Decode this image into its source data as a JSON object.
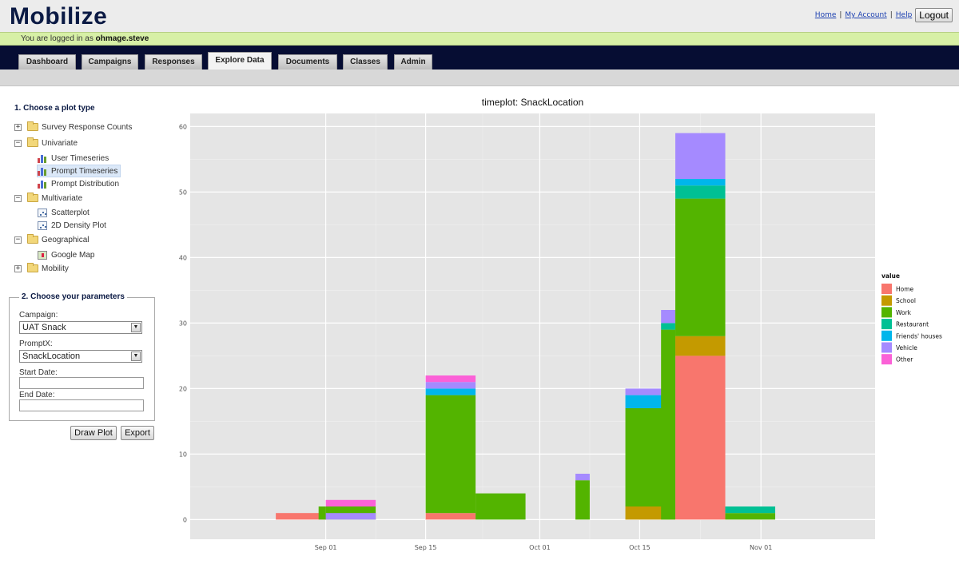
{
  "app": {
    "title": "Mobilize",
    "top_links": [
      "Home",
      "My Account",
      "Help"
    ],
    "logout_label": "Logout",
    "status_prefix": "You are logged in as",
    "username": "ohmage.steve"
  },
  "nav": {
    "tabs": [
      {
        "label": "Dashboard",
        "active": false
      },
      {
        "label": "Campaigns",
        "active": false
      },
      {
        "label": "Responses",
        "active": false
      },
      {
        "label": "Explore Data",
        "active": true
      },
      {
        "label": "Documents",
        "active": false
      },
      {
        "label": "Classes",
        "active": false
      },
      {
        "label": "Admin",
        "active": false
      }
    ]
  },
  "sidebar": {
    "plot_type_title": "1. Choose a plot type",
    "tree": [
      {
        "label": "Survey Response Counts",
        "expander": "+",
        "icon": "folder-icon"
      },
      {
        "label": "Univariate",
        "expander": "−",
        "icon": "folder-icon"
      },
      {
        "label": "User Timeseries",
        "icon": "barchart-icon",
        "child": true
      },
      {
        "label": "Prompt Timeseries",
        "icon": "barchart-icon",
        "child": true,
        "selected": true
      },
      {
        "label": "Prompt Distribution",
        "icon": "barchart-icon",
        "child": true
      },
      {
        "label": "Multivariate",
        "expander": "−",
        "icon": "folder-icon"
      },
      {
        "label": "Scatterplot",
        "icon": "scatterplot-icon",
        "child": true
      },
      {
        "label": "2D Density Plot",
        "icon": "scatterplot-icon",
        "child": true
      },
      {
        "label": "Geographical",
        "expander": "−",
        "icon": "folder-icon"
      },
      {
        "label": "Google Map",
        "icon": "map-icon",
        "child": true
      },
      {
        "label": "Mobility",
        "expander": "+",
        "icon": "folder-icon"
      }
    ],
    "params_title": "2. Choose your parameters",
    "campaign_label": "Campaign:",
    "campaign_value": "UAT Snack",
    "promptx_label": "PromptX:",
    "promptx_value": "SnackLocation",
    "start_date_label": "Start Date:",
    "start_date_value": "",
    "end_date_label": "End Date:",
    "end_date_value": "",
    "draw_plot_label": "Draw Plot",
    "export_label": "Export"
  },
  "chart_data": {
    "type": "bar",
    "stacked": true,
    "title": "timeplot: SnackLocation",
    "xlabel": "",
    "ylabel": "",
    "ylim": [
      -3,
      62
    ],
    "yticks": [
      0,
      10,
      20,
      30,
      40,
      50,
      60
    ],
    "x_is_date": true,
    "xlim": [
      "2011-08-13",
      "2011-11-17"
    ],
    "xticks": [
      {
        "date": "2011-09-01",
        "label": "Sep 01"
      },
      {
        "date": "2011-09-15",
        "label": "Sep 15"
      },
      {
        "date": "2011-10-01",
        "label": "Oct 01"
      },
      {
        "date": "2011-10-15",
        "label": "Oct 15"
      },
      {
        "date": "2011-11-01",
        "label": "Nov 01"
      }
    ],
    "grid": true,
    "background": "#e5e5e5",
    "legend": {
      "title": "value",
      "position": "right",
      "entries": [
        {
          "name": "Home",
          "color": "#f8766d"
        },
        {
          "name": "School",
          "color": "#c49a00"
        },
        {
          "name": "Work",
          "color": "#53b400"
        },
        {
          "name": "Restaurant",
          "color": "#00c094"
        },
        {
          "name": "Friends' houses",
          "color": "#00b6eb"
        },
        {
          "name": "Vehicle",
          "color": "#a58aff"
        },
        {
          "name": "Other",
          "color": "#fb61d7"
        }
      ]
    },
    "bars": [
      {
        "start": "2011-08-25",
        "end": "2011-09-08",
        "values": {
          "Home": 1
        }
      },
      {
        "start": "2011-08-31",
        "end": "2011-09-01",
        "values": {
          "Work": 2
        }
      },
      {
        "start": "2011-09-01",
        "end": "2011-09-08",
        "values": {
          "Work": 2,
          "Other": 1
        }
      },
      {
        "start": "2011-09-01",
        "end": "2011-09-08",
        "values": {
          "Vehicle": 1
        }
      },
      {
        "start": "2011-09-15",
        "end": "2011-09-22",
        "values": {
          "Home": 1,
          "Work": 18,
          "Friends' houses": 1,
          "Vehicle": 1,
          "Other": 1
        }
      },
      {
        "start": "2011-09-22",
        "end": "2011-09-29",
        "values": {
          "Work": 4
        }
      },
      {
        "start": "2011-10-06",
        "end": "2011-10-08",
        "values": {
          "Work": 6,
          "Vehicle": 1
        }
      },
      {
        "start": "2011-10-13",
        "end": "2011-10-20",
        "values": {
          "School": 2,
          "Work": 15,
          "Friends' houses": 2,
          "Vehicle": 1
        }
      },
      {
        "start": "2011-10-18",
        "end": "2011-10-20",
        "values": {
          "Work": 29,
          "Restaurant": 1,
          "Vehicle": 2
        }
      },
      {
        "start": "2011-10-20",
        "end": "2011-10-27",
        "values": {
          "Home": 25,
          "School": 3,
          "Work": 21,
          "Restaurant": 2,
          "Friends' houses": 1,
          "Vehicle": 7
        }
      },
      {
        "start": "2011-10-27",
        "end": "2011-11-03",
        "values": {
          "Work": 1,
          "Restaurant": 1
        }
      }
    ]
  }
}
